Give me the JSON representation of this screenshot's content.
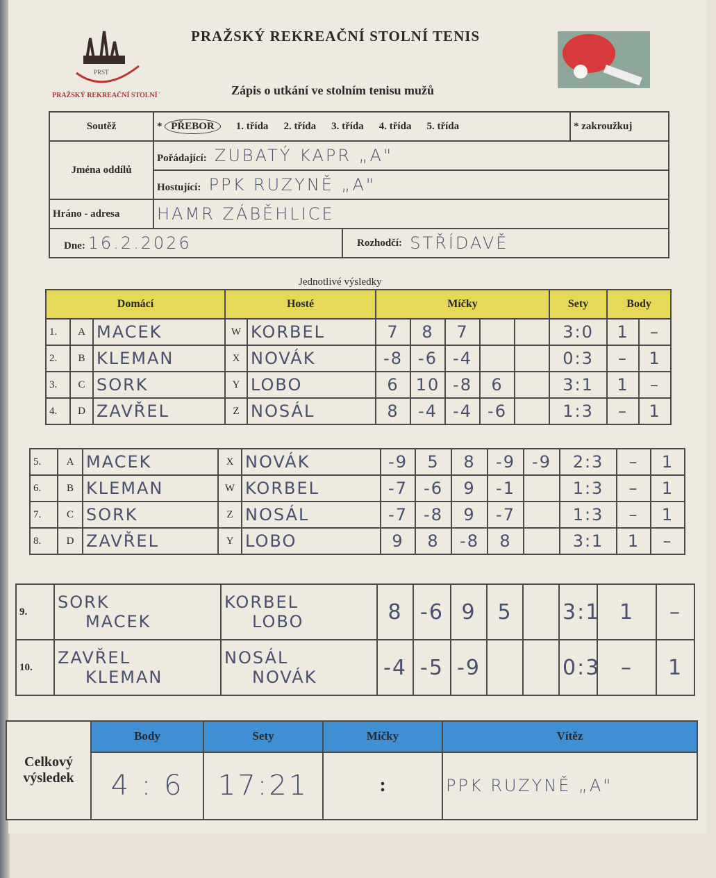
{
  "header": {
    "title": "PRAŽSKÝ REKREAČNÍ STOLNÍ TENIS",
    "subtitle": "Zápis o utkání ve stolním tenisu mužů",
    "logo_text": "PRAŽSKÝ REKREAČNÍ STOLNÍ TENIS",
    "logo_abbr": "PRST"
  },
  "info": {
    "soutez_label": "Soutěž",
    "star": "*",
    "classes": [
      "PŘEBOR",
      "1. třída",
      "2. třída",
      "3. třída",
      "4. třída",
      "5. třída"
    ],
    "selected_class": "PŘEBOR",
    "note": "* zakroužkuj",
    "jmena_label": "Jména oddílů",
    "poradajici_label": "Pořádající:",
    "poradajici": "ZUBATÝ KAPR „A\"",
    "hostujici_label": "Hostující:",
    "hostujici": "PPK RUZYNĚ „A\"",
    "adresa_label": "Hráno - adresa",
    "adresa": "HAMR ZÁBĚHLICE",
    "dne_label": "Dne:",
    "dne": "16.2.2026",
    "rozhodci_label": "Rozhodčí:",
    "rozhodci": "STŘÍDAVĚ"
  },
  "results": {
    "caption": "Jednotlivé výsledky",
    "headers": {
      "domaci": "Domácí",
      "hoste": "Hosté",
      "micky": "Míčky",
      "sety": "Sety",
      "body": "Body"
    },
    "singles": [
      [
        {
          "no": "1.",
          "hl": "A",
          "home": "MACEK",
          "gl": "W",
          "guest": "KORBEL",
          "balls": [
            "7",
            "8",
            "7",
            "",
            ""
          ],
          "sets": "3:0",
          "bh": "1",
          "bg": "–"
        },
        {
          "no": "2.",
          "hl": "B",
          "home": "KLEMAN",
          "gl": "X",
          "guest": "NOVÁK",
          "balls": [
            "-8",
            "-6",
            "-4",
            "",
            ""
          ],
          "sets": "0:3",
          "bh": "–",
          "bg": "1"
        },
        {
          "no": "3.",
          "hl": "C",
          "home": "SORK",
          "gl": "Y",
          "guest": "LOBO",
          "balls": [
            "6",
            "10",
            "-8",
            "6",
            ""
          ],
          "sets": "3:1",
          "bh": "1",
          "bg": "–"
        },
        {
          "no": "4.",
          "hl": "D",
          "home": "ZAVŘEL",
          "gl": "Z",
          "guest": "NOSÁL",
          "balls": [
            "8",
            "-4",
            "-4",
            "-6",
            ""
          ],
          "sets": "1:3",
          "bh": "–",
          "bg": "1"
        }
      ],
      [
        {
          "no": "5.",
          "hl": "A",
          "home": "MACEK",
          "gl": "X",
          "guest": "NOVÁK",
          "balls": [
            "-9",
            "5",
            "8",
            "-9",
            "-9"
          ],
          "sets": "2:3",
          "bh": "–",
          "bg": "1"
        },
        {
          "no": "6.",
          "hl": "B",
          "home": "KLEMAN",
          "gl": "W",
          "guest": "KORBEL",
          "balls": [
            "-7",
            "-6",
            "9",
            "-1",
            ""
          ],
          "sets": "1:3",
          "bh": "–",
          "bg": "1"
        },
        {
          "no": "7.",
          "hl": "C",
          "home": "SORK",
          "gl": "Z",
          "guest": "NOSÁL",
          "balls": [
            "-7",
            "-8",
            "9",
            "-7",
            ""
          ],
          "sets": "1:3",
          "bh": "–",
          "bg": "1"
        },
        {
          "no": "8.",
          "hl": "D",
          "home": "ZAVŘEL",
          "gl": "Y",
          "guest": "LOBO",
          "balls": [
            "9",
            "8",
            "-8",
            "8",
            ""
          ],
          "sets": "3:1",
          "bh": "1",
          "bg": "–"
        }
      ]
    ],
    "doubles": [
      {
        "no": "9.",
        "home": [
          "SORK",
          "MACEK"
        ],
        "guest": [
          "KORBEL",
          "LOBO"
        ],
        "balls": [
          "8",
          "-6",
          "9",
          "5",
          ""
        ],
        "sets": "3:1",
        "bh": "1",
        "bg": "–"
      },
      {
        "no": "10.",
        "home": [
          "ZAVŘEL",
          "KLEMAN"
        ],
        "guest": [
          "NOSÁL",
          "NOVÁK"
        ],
        "balls": [
          "-4",
          "-5",
          "-9",
          "",
          ""
        ],
        "sets": "0:3",
        "bh": "–",
        "bg": "1"
      }
    ]
  },
  "total": {
    "label": "Celkový výsledek",
    "headers": [
      "Body",
      "Sety",
      "Míčky",
      "Vítěz"
    ],
    "body": "4 : 6",
    "sety": "17:21",
    "micky": ":",
    "vitez": "PPK RUZYNĚ „A\""
  },
  "colors": {
    "yellow_header": "#e6d95a",
    "blue_header": "#3f8fd2",
    "ink": "#48506e"
  }
}
